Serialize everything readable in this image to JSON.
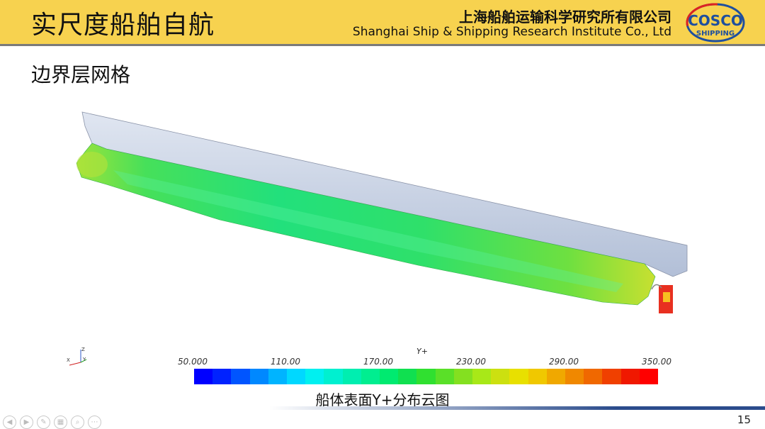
{
  "header": {
    "title": "实尺度船舶自航",
    "company_cn": "上海船舶运输科学研究所有限公司",
    "company_en": "Shanghai Ship & Shipping Research Institute Co., Ltd",
    "logo_line1": "COSCO",
    "logo_line2": "SHIPPING"
  },
  "section": {
    "title": "边界层网格"
  },
  "figure": {
    "colorbar": {
      "variable": "Y+",
      "ticks": [
        "50.000",
        "110.00",
        "170.00",
        "230.00",
        "290.00",
        "350.00"
      ],
      "colors": [
        "#0000ff",
        "#0022ff",
        "#0055ff",
        "#0088ff",
        "#00b4ff",
        "#00d8ff",
        "#00f0f0",
        "#00f0d0",
        "#00eeb0",
        "#00ee90",
        "#00ea70",
        "#10e050",
        "#30e030",
        "#5ae028",
        "#84e020",
        "#a8e818",
        "#cce010",
        "#e8e000",
        "#f0c800",
        "#f0a800",
        "#f08800",
        "#f06800",
        "#f04000",
        "#f01800",
        "#ff0000"
      ],
      "range": [
        50,
        350
      ]
    },
    "axis": {
      "z": "Z",
      "x": "X",
      "y": "Y"
    },
    "caption": "船体表面Y+分布云图"
  },
  "footer": {
    "page_number": "15"
  }
}
